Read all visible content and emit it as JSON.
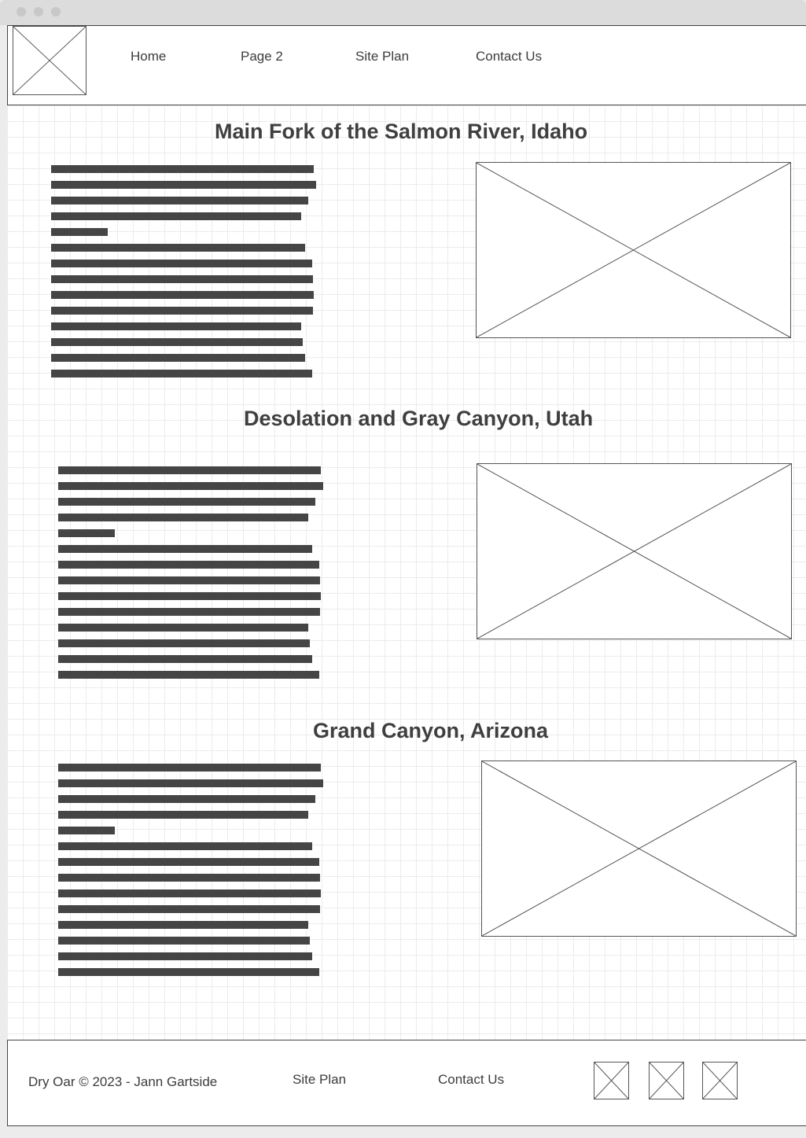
{
  "nav": {
    "logo_icon": "image-placeholder-icon",
    "links": [
      "Home",
      "Page 2",
      "Site Plan",
      "Contact Us"
    ]
  },
  "sections": [
    {
      "title": "Main Fork of the Salmon River, Idaho",
      "image_icon": "image-placeholder-icon"
    },
    {
      "title": "Desolation and Gray Canyon, Utah",
      "image_icon": "image-placeholder-icon"
    },
    {
      "title": "Grand Canyon, Arizona",
      "image_icon": "image-placeholder-icon"
    }
  ],
  "footer": {
    "copyright": "Dry Oar © 2023 - Jann Gartside",
    "site_plan": "Site Plan",
    "contact_us": "Contact Us",
    "social_icons": [
      "image-placeholder-icon",
      "image-placeholder-icon",
      "image-placeholder-icon"
    ]
  },
  "colors": {
    "text": "#3c3c3c",
    "text_bar": "#454545",
    "grid": "#ececec",
    "border": "#444444"
  }
}
